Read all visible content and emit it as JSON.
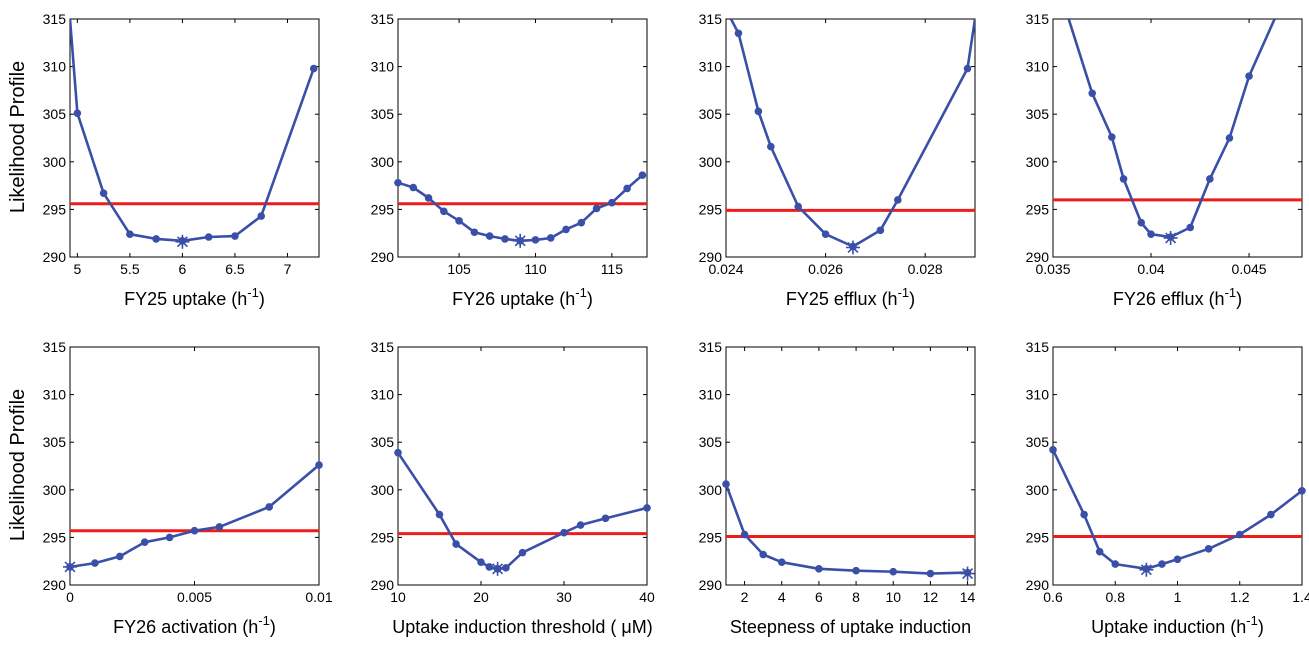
{
  "colors": {
    "series": "#3a4fa8",
    "threshold": "#ee1c1c",
    "axis": "#000000"
  },
  "ylabel": "Likelihood Profile",
  "chart_data": [
    {
      "type": "line",
      "xlabel": {
        "main": "FY25 uptake (h",
        "sup": "-1",
        "tail": ")"
      },
      "xlim": [
        4.93,
        7.3
      ],
      "ylim": [
        290,
        315
      ],
      "xticks": [
        5,
        5.5,
        6,
        6.5,
        7
      ],
      "xtick_labels": [
        "5",
        "5.5",
        "6",
        "6.5",
        "7"
      ],
      "yticks": [
        290,
        295,
        300,
        305,
        310,
        315
      ],
      "ytick_labels": [
        "290",
        "295",
        "300",
        "305",
        "310",
        "315"
      ],
      "threshold": 295.6,
      "x": [
        4.93,
        5.0,
        5.25,
        5.5,
        5.75,
        6.0,
        6.25,
        6.5,
        6.75,
        7.25
      ],
      "y": [
        315,
        305.1,
        296.7,
        292.4,
        291.9,
        291.7,
        292.1,
        292.2,
        294.3,
        309.8
      ],
      "optimum": [
        6.0,
        291.6
      ]
    },
    {
      "type": "line",
      "xlabel": {
        "main": "FY26 uptake (h",
        "sup": "-1",
        "tail": ")"
      },
      "xlim": [
        101,
        117.3
      ],
      "ylim": [
        290,
        315
      ],
      "xticks": [
        105,
        110,
        115
      ],
      "xtick_labels": [
        "105",
        "110",
        "115"
      ],
      "yticks": [
        290,
        295,
        300,
        305,
        310,
        315
      ],
      "ytick_labels": [
        "290",
        "295",
        "300",
        "305",
        "310",
        "315"
      ],
      "threshold": 295.6,
      "x": [
        101,
        102,
        103,
        104,
        105,
        106,
        107,
        108,
        109,
        110,
        111,
        112,
        113,
        114,
        115,
        116,
        117
      ],
      "y": [
        297.8,
        297.3,
        296.2,
        294.8,
        293.8,
        292.6,
        292.2,
        291.9,
        291.7,
        291.8,
        292.0,
        292.9,
        293.6,
        295.1,
        295.7,
        297.2,
        298.6
      ],
      "optimum": [
        109,
        291.7
      ]
    },
    {
      "type": "line",
      "xlabel": {
        "main": "FY25 efflux (h",
        "sup": "-1",
        "tail": ")"
      },
      "xlim": [
        0.024,
        0.029
      ],
      "ylim": [
        290,
        315
      ],
      "xticks": [
        0.024,
        0.026,
        0.028
      ],
      "xtick_labels": [
        "0.024",
        "0.026",
        "0.028"
      ],
      "yticks": [
        290,
        295,
        300,
        305,
        310,
        315
      ],
      "ytick_labels": [
        "290",
        "295",
        "300",
        "305",
        "310",
        "315"
      ],
      "threshold": 294.9,
      "x": [
        0.0241,
        0.02425,
        0.02465,
        0.0249,
        0.02545,
        0.026,
        0.02655,
        0.0271,
        0.02745,
        0.02885,
        0.029
      ],
      "y": [
        315,
        313.5,
        305.3,
        301.6,
        295.3,
        292.4,
        291.1,
        292.8,
        296.0,
        309.8,
        315
      ],
      "optimum": [
        0.02655,
        291.0
      ]
    },
    {
      "type": "line",
      "xlabel": {
        "main": "FY26 efflux (h",
        "sup": "-1",
        "tail": ")"
      },
      "xlim": [
        0.035,
        0.0477
      ],
      "ylim": [
        290,
        315
      ],
      "xticks": [
        0.035,
        0.04,
        0.045
      ],
      "xtick_labels": [
        "0.035",
        "0.04",
        "0.045"
      ],
      "yticks": [
        290,
        295,
        300,
        305,
        310,
        315
      ],
      "ytick_labels": [
        "290",
        "295",
        "300",
        "305",
        "310",
        "315"
      ],
      "threshold": 296.0,
      "x": [
        0.0358,
        0.037,
        0.038,
        0.0386,
        0.0395,
        0.04,
        0.041,
        0.042,
        0.043,
        0.044,
        0.045,
        0.0463
      ],
      "y": [
        315,
        307.2,
        302.6,
        298.2,
        293.6,
        292.4,
        292.1,
        293.1,
        298.2,
        302.5,
        309.0,
        315
      ],
      "optimum": [
        0.041,
        292.0
      ]
    },
    {
      "type": "line",
      "xlabel": {
        "main": "FY26 activation (h",
        "sup": "-1",
        "tail": ")"
      },
      "xlim": [
        0,
        0.01
      ],
      "ylim": [
        290,
        315
      ],
      "xticks": [
        0,
        0.005,
        0.01
      ],
      "xtick_labels": [
        "0",
        "0.005",
        "0.01"
      ],
      "yticks": [
        290,
        295,
        300,
        305,
        310,
        315
      ],
      "ytick_labels": [
        "290",
        "295",
        "300",
        "305",
        "310",
        "315"
      ],
      "threshold": 295.7,
      "x": [
        0,
        0.001,
        0.002,
        0.003,
        0.004,
        0.005,
        0.006,
        0.008,
        0.01
      ],
      "y": [
        291.9,
        292.3,
        293.0,
        294.5,
        295.0,
        295.7,
        296.1,
        298.2,
        302.6
      ],
      "optimum": [
        0,
        291.9
      ]
    },
    {
      "type": "line",
      "xlabel": {
        "main": "Uptake induction threshold ( μM)",
        "sup": "",
        "tail": ""
      },
      "xlim": [
        10,
        40
      ],
      "ylim": [
        290,
        315
      ],
      "xticks": [
        10,
        20,
        30,
        40
      ],
      "xtick_labels": [
        "10",
        "20",
        "30",
        "40"
      ],
      "yticks": [
        290,
        295,
        300,
        305,
        310,
        315
      ],
      "ytick_labels": [
        "290",
        "295",
        "300",
        "305",
        "310",
        "315"
      ],
      "threshold": 295.4,
      "x": [
        10,
        15,
        17,
        20,
        21,
        22,
        23,
        25,
        30,
        32,
        35,
        40
      ],
      "y": [
        303.9,
        297.4,
        294.3,
        292.4,
        291.9,
        291.7,
        291.8,
        293.4,
        295.5,
        296.3,
        297.0,
        298.1
      ],
      "optimum": [
        22,
        291.7
      ]
    },
    {
      "type": "line",
      "xlabel": {
        "main": "Steepness of uptake induction",
        "sup": "",
        "tail": ""
      },
      "xlim": [
        1,
        14.4
      ],
      "ylim": [
        290,
        315
      ],
      "xticks": [
        2,
        4,
        6,
        8,
        10,
        12,
        14
      ],
      "xtick_labels": [
        "2",
        "4",
        "6",
        "8",
        "10",
        "12",
        "14"
      ],
      "yticks": [
        290,
        295,
        300,
        305,
        310,
        315
      ],
      "ytick_labels": [
        "290",
        "295",
        "300",
        "305",
        "310",
        "315"
      ],
      "threshold": 295.1,
      "x": [
        1,
        2,
        3,
        4,
        6,
        8,
        10,
        12,
        14
      ],
      "y": [
        300.6,
        295.3,
        293.2,
        292.4,
        291.7,
        291.5,
        291.4,
        291.2,
        291.3
      ],
      "optimum": [
        14,
        291.2
      ]
    },
    {
      "type": "line",
      "xlabel": {
        "main": "Uptake induction (h",
        "sup": "-1",
        "tail": ")"
      },
      "xlim": [
        0.6,
        1.4
      ],
      "ylim": [
        290,
        315
      ],
      "xticks": [
        0.6,
        0.8,
        1,
        1.2,
        1.4
      ],
      "xtick_labels": [
        "0.6",
        "0.8",
        "1",
        "1.2",
        "1.4"
      ],
      "yticks": [
        290,
        295,
        300,
        305,
        310,
        315
      ],
      "ytick_labels": [
        "290",
        "295",
        "300",
        "305",
        "310",
        "315"
      ],
      "threshold": 295.1,
      "x": [
        0.6,
        0.7,
        0.75,
        0.8,
        0.9,
        0.95,
        1.0,
        1.1,
        1.2,
        1.3,
        1.4
      ],
      "y": [
        304.2,
        297.4,
        293.5,
        292.2,
        291.7,
        292.2,
        292.7,
        293.8,
        295.3,
        297.4,
        299.9
      ],
      "optimum": [
        0.9,
        291.6
      ]
    }
  ]
}
